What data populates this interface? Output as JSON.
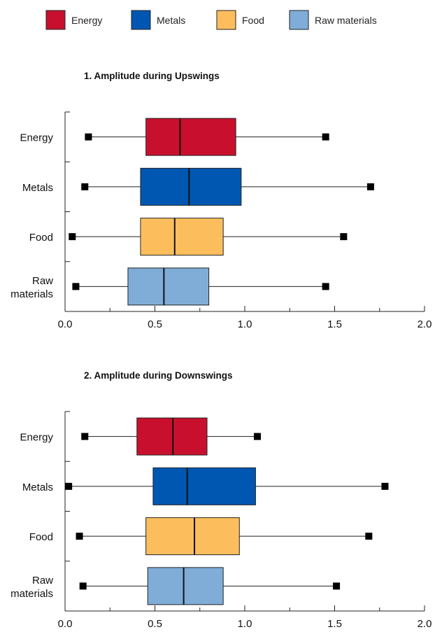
{
  "legend": [
    {
      "label": "Energy",
      "color": "#c8102e"
    },
    {
      "label": "Metals",
      "color": "#0057b1"
    },
    {
      "label": "Food",
      "color": "#fcbe5d"
    },
    {
      "label": "Raw materials",
      "color": "#7fadd8"
    }
  ],
  "chart_data": [
    {
      "type": "box",
      "title": "1. Amplitude during Upswings",
      "xlim": [
        0.0,
        2.0
      ],
      "xticks": [
        "0.0",
        "0.5",
        "1.0",
        "1.5",
        "2.0"
      ],
      "xtick_values": [
        0.0,
        0.5,
        1.0,
        1.5,
        2.0
      ],
      "categories": [
        {
          "name": "Energy",
          "label_lines": [
            "Energy"
          ],
          "color": "#c8102e",
          "min": 0.13,
          "q1": 0.45,
          "median": 0.64,
          "q3": 0.95,
          "max": 1.45
        },
        {
          "name": "Metals",
          "label_lines": [
            "Metals"
          ],
          "color": "#0057b1",
          "min": 0.11,
          "q1": 0.42,
          "median": 0.69,
          "q3": 0.98,
          "max": 1.7
        },
        {
          "name": "Food",
          "label_lines": [
            "Food"
          ],
          "color": "#fcbe5d",
          "min": 0.04,
          "q1": 0.42,
          "median": 0.61,
          "q3": 0.88,
          "max": 1.55
        },
        {
          "name": "Raw materials",
          "label_lines": [
            "Raw",
            "materials"
          ],
          "color": "#7fadd8",
          "min": 0.06,
          "q1": 0.35,
          "median": 0.55,
          "q3": 0.8,
          "max": 1.45
        }
      ]
    },
    {
      "type": "box",
      "title": "2. Amplitude during Downswings",
      "xlim": [
        0.0,
        2.0
      ],
      "xticks": [
        "0.0",
        "0.5",
        "1.0",
        "1.5",
        "2.0"
      ],
      "xtick_values": [
        0.0,
        0.5,
        1.0,
        1.5,
        2.0
      ],
      "categories": [
        {
          "name": "Energy",
          "label_lines": [
            "Energy"
          ],
          "color": "#c8102e",
          "min": 0.11,
          "q1": 0.4,
          "median": 0.6,
          "q3": 0.79,
          "max": 1.07
        },
        {
          "name": "Metals",
          "label_lines": [
            "Metals"
          ],
          "color": "#0057b1",
          "min": 0.02,
          "q1": 0.49,
          "median": 0.68,
          "q3": 1.06,
          "max": 1.78
        },
        {
          "name": "Food",
          "label_lines": [
            "Food"
          ],
          "color": "#fcbe5d",
          "min": 0.08,
          "q1": 0.45,
          "median": 0.72,
          "q3": 0.97,
          "max": 1.69
        },
        {
          "name": "Raw materials",
          "label_lines": [
            "Raw",
            "materials"
          ],
          "color": "#7fadd8",
          "min": 0.1,
          "q1": 0.46,
          "median": 0.66,
          "q3": 0.88,
          "max": 1.51
        }
      ]
    }
  ]
}
